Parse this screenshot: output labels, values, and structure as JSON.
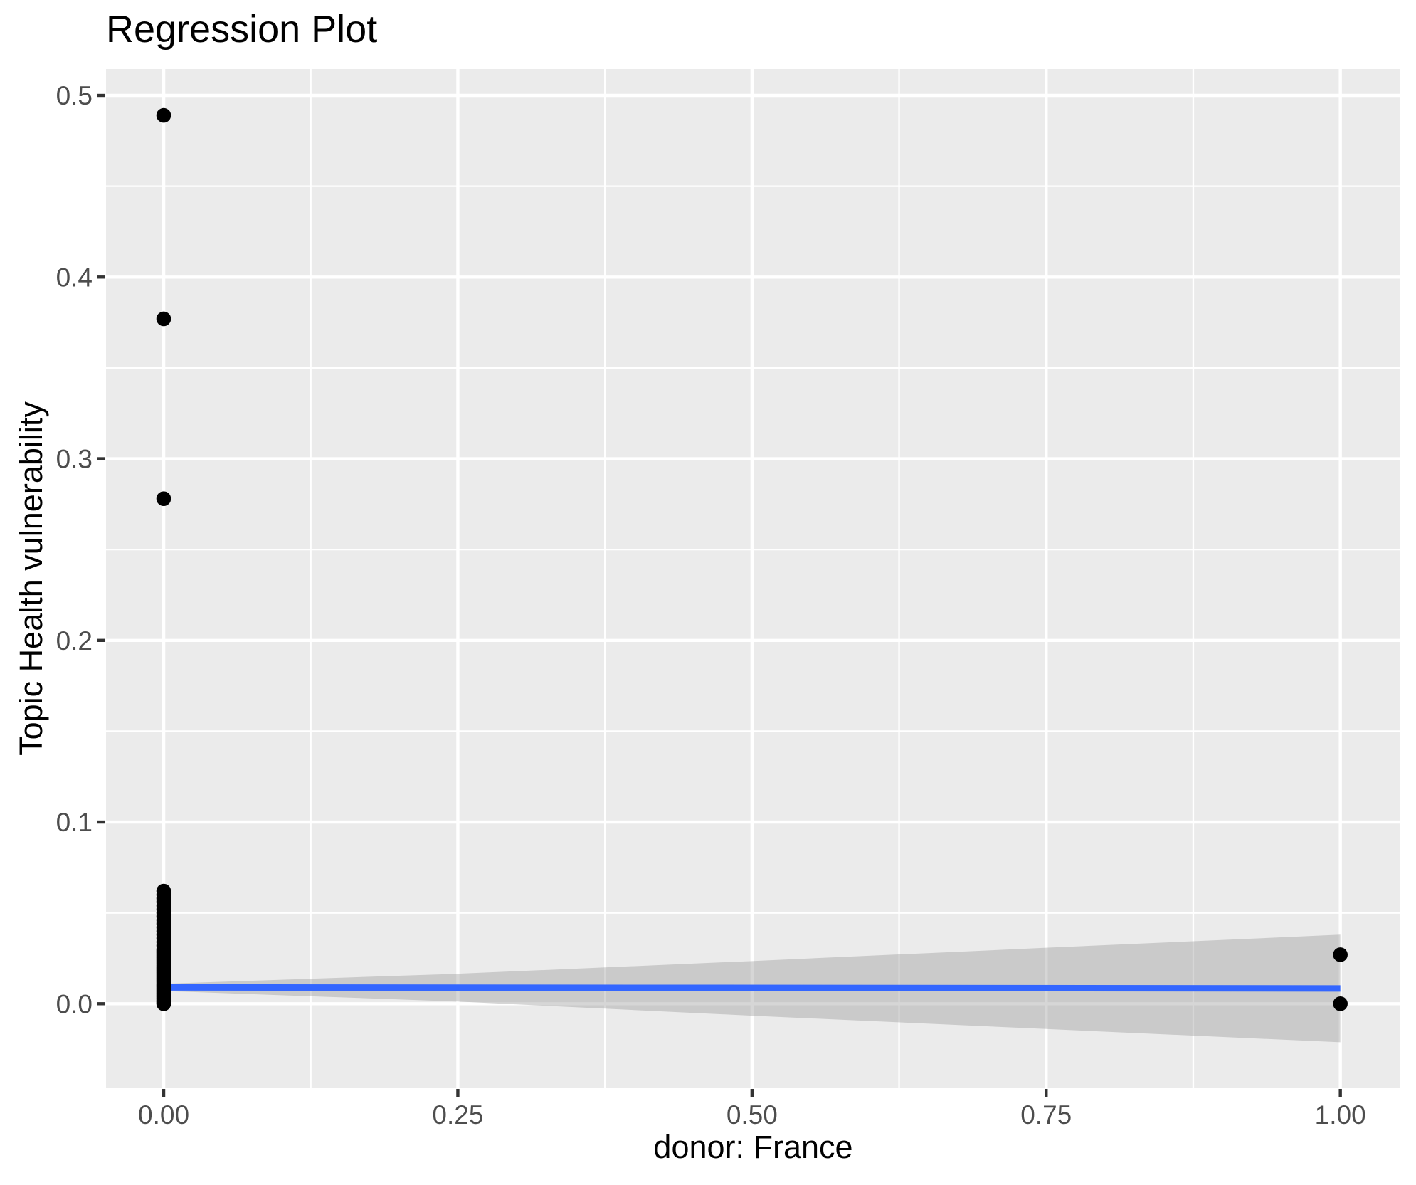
{
  "figure": {
    "background": "#FFFFFF"
  },
  "chart_data": {
    "type": "scatter",
    "title": "Regression Plot",
    "xlabel": "donor: France",
    "ylabel": "Topic Health vulnerability",
    "legend_position": "none",
    "grid": true,
    "x_axis": {
      "range": [
        -0.049,
        1.051
      ],
      "major_ticks": [
        0.0,
        0.25,
        0.5,
        0.75,
        1.0
      ],
      "tick_labels": [
        "0.00",
        "0.25",
        "0.50",
        "0.75",
        "1.00"
      ],
      "minor_ticks": [
        0.125,
        0.375,
        0.625,
        0.875
      ]
    },
    "y_axis": {
      "range": [
        -0.0465,
        0.5145
      ],
      "major_ticks": [
        0.0,
        0.1,
        0.2,
        0.3,
        0.4,
        0.5
      ],
      "tick_labels": [
        "0.0",
        "0.1",
        "0.2",
        "0.3",
        "0.4",
        "0.5"
      ],
      "minor_ticks": [
        0.05,
        0.15,
        0.25,
        0.35,
        0.45
      ]
    },
    "points": [
      [
        0,
        0.489
      ],
      [
        0,
        0.377
      ],
      [
        0,
        0.278
      ],
      [
        0,
        0.0
      ],
      [
        0,
        0.001
      ],
      [
        0,
        0.002
      ],
      [
        0,
        0.003
      ],
      [
        0,
        0.004
      ],
      [
        0,
        0.005
      ],
      [
        0,
        0.006
      ],
      [
        0,
        0.007
      ],
      [
        0,
        0.008
      ],
      [
        0,
        0.009
      ],
      [
        0,
        0.01
      ],
      [
        0,
        0.011
      ],
      [
        0,
        0.012
      ],
      [
        0,
        0.013
      ],
      [
        0,
        0.014
      ],
      [
        0,
        0.015
      ],
      [
        0,
        0.016
      ],
      [
        0,
        0.017
      ],
      [
        0,
        0.018
      ],
      [
        0,
        0.019
      ],
      [
        0,
        0.02
      ],
      [
        0,
        0.021
      ],
      [
        0,
        0.022
      ],
      [
        0,
        0.023
      ],
      [
        0,
        0.024
      ],
      [
        0,
        0.025
      ],
      [
        0,
        0.026
      ],
      [
        0,
        0.027
      ],
      [
        0,
        0.028
      ],
      [
        0,
        0.029
      ],
      [
        0,
        0.03
      ],
      [
        0,
        0.032
      ],
      [
        0,
        0.034
      ],
      [
        0,
        0.036
      ],
      [
        0,
        0.038
      ],
      [
        0,
        0.04
      ],
      [
        0,
        0.042
      ],
      [
        0,
        0.044
      ],
      [
        0,
        0.046
      ],
      [
        0,
        0.048
      ],
      [
        0,
        0.05
      ],
      [
        0,
        0.052
      ],
      [
        0,
        0.054
      ],
      [
        0,
        0.056
      ],
      [
        0,
        0.058
      ],
      [
        0,
        0.06
      ],
      [
        0,
        0.062
      ],
      [
        1,
        0.027
      ],
      [
        1,
        0.0
      ]
    ],
    "regression_line": {
      "x": [
        0,
        1
      ],
      "y": [
        0.009,
        0.0084
      ],
      "color": "#3366FF",
      "width": 9
    },
    "confidence_band": {
      "x": [
        0.0,
        0.25,
        0.5,
        0.75,
        1.0
      ],
      "upper": [
        0.011,
        0.0165,
        0.0235,
        0.0308,
        0.038
      ],
      "lower": [
        0.007,
        0.0012,
        -0.0066,
        -0.0139,
        -0.0212
      ],
      "color": "#999999",
      "opacity": 0.4
    },
    "point_style": {
      "color": "#000000",
      "radius": 10.3
    },
    "theme": {
      "panel_background": "#EBEBEB",
      "grid_color": "#FFFFFF",
      "tick_label_color": "#4D4D4D",
      "tick_mark_color": "#333333",
      "title_color": "#000000",
      "axis_title_color": "#000000"
    }
  }
}
